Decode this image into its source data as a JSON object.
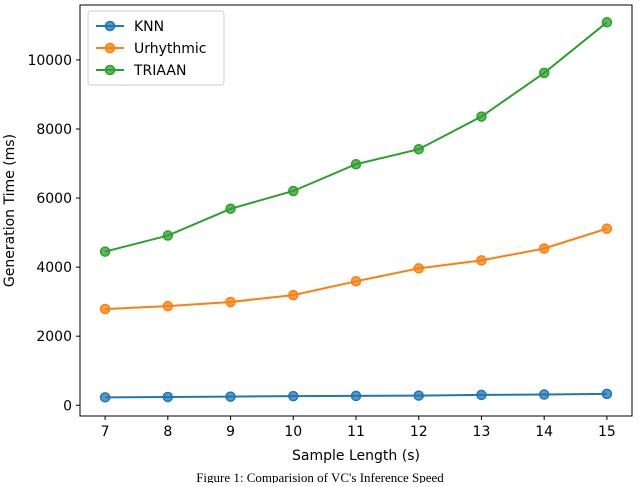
{
  "chart_data": {
    "type": "line",
    "caption": "Figure 1: Comparision of VC's Inference Speed",
    "x_label": "Sample Length (s)",
    "y_label": "Generation Time (ms)",
    "x": [
      7,
      8,
      9,
      10,
      11,
      12,
      13,
      14,
      15
    ],
    "series": [
      {
        "name": "KNN",
        "color": "#1f77b4",
        "values": [
          230,
          240,
          250,
          265,
          270,
          280,
          300,
          310,
          330
        ]
      },
      {
        "name": "Urhythmic",
        "color": "#ff7f0e",
        "values": [
          2787,
          2870,
          2990,
          3190,
          3590,
          3965,
          4195,
          4540,
          5115
        ]
      },
      {
        "name": "TRIAAN",
        "color": "#2ca02c",
        "values": [
          4450,
          4915,
          5690,
          6205,
          6980,
          7415,
          8360,
          9625,
          11090
        ]
      }
    ],
    "xlim": [
      6.6,
      15.4
    ],
    "xticks": [
      7,
      8,
      9,
      10,
      11,
      12,
      13,
      14,
      15
    ],
    "ylim": [
      -311,
      11591
    ],
    "yticks": [
      0,
      2000,
      4000,
      6000,
      8000,
      10000
    ],
    "legend": "upper left",
    "grid": false
  }
}
